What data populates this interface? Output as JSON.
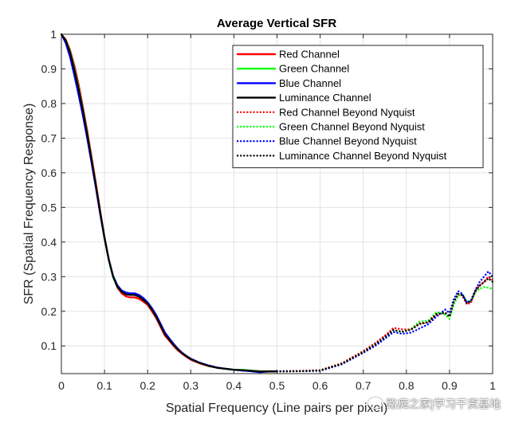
{
  "chart_data": {
    "type": "line",
    "title": "Average Vertical SFR",
    "xlabel": "Spatial Frequency (Line pairs per pixel)",
    "ylabel": "SFR (Spatial Frequency Response)",
    "xlim": [
      0,
      1
    ],
    "ylim": [
      0.02,
      1
    ],
    "xticks": [
      "0",
      "0.1",
      "0.2",
      "0.3",
      "0.4",
      "0.5",
      "0.6",
      "0.7",
      "0.8",
      "0.9",
      "1"
    ],
    "yticks": [
      "0.1",
      "0.2",
      "0.3",
      "0.4",
      "0.5",
      "0.6",
      "0.7",
      "0.8",
      "0.9",
      "1"
    ],
    "grid": true,
    "legend_position": "top-right",
    "series": [
      {
        "name": "Red Channel",
        "color": "#ff0000",
        "style": "solid",
        "x": [
          0,
          0.01,
          0.02,
          0.03,
          0.04,
          0.05,
          0.06,
          0.07,
          0.08,
          0.09,
          0.1,
          0.11,
          0.12,
          0.13,
          0.14,
          0.15,
          0.16,
          0.17,
          0.18,
          0.19,
          0.2,
          0.21,
          0.22,
          0.23,
          0.24,
          0.25,
          0.26,
          0.27,
          0.28,
          0.29,
          0.3,
          0.32,
          0.34,
          0.36,
          0.38,
          0.4,
          0.42,
          0.44,
          0.46,
          0.48,
          0.5
        ],
        "y": [
          1,
          0.985,
          0.955,
          0.91,
          0.855,
          0.79,
          0.72,
          0.645,
          0.57,
          0.49,
          0.415,
          0.35,
          0.3,
          0.268,
          0.252,
          0.243,
          0.24,
          0.24,
          0.236,
          0.228,
          0.218,
          0.2,
          0.18,
          0.155,
          0.13,
          0.115,
          0.1,
          0.087,
          0.077,
          0.068,
          0.06,
          0.05,
          0.042,
          0.037,
          0.034,
          0.031,
          0.029,
          0.028,
          0.027,
          0.027,
          0.027
        ]
      },
      {
        "name": "Green Channel",
        "color": "#00ff00",
        "style": "solid",
        "x": [
          0,
          0.01,
          0.02,
          0.03,
          0.04,
          0.05,
          0.06,
          0.07,
          0.08,
          0.09,
          0.1,
          0.11,
          0.12,
          0.13,
          0.14,
          0.15,
          0.16,
          0.17,
          0.18,
          0.19,
          0.2,
          0.21,
          0.22,
          0.23,
          0.24,
          0.25,
          0.26,
          0.27,
          0.28,
          0.29,
          0.3,
          0.32,
          0.34,
          0.36,
          0.38,
          0.4,
          0.42,
          0.44,
          0.46,
          0.48,
          0.5
        ],
        "y": [
          1,
          0.983,
          0.95,
          0.902,
          0.845,
          0.782,
          0.712,
          0.638,
          0.562,
          0.485,
          0.41,
          0.347,
          0.298,
          0.27,
          0.256,
          0.25,
          0.248,
          0.248,
          0.243,
          0.234,
          0.222,
          0.205,
          0.185,
          0.16,
          0.135,
          0.119,
          0.103,
          0.09,
          0.079,
          0.07,
          0.062,
          0.051,
          0.043,
          0.037,
          0.034,
          0.031,
          0.031,
          0.029,
          0.027,
          0.026,
          0.026
        ]
      },
      {
        "name": "Blue Channel",
        "color": "#0000ff",
        "style": "solid",
        "x": [
          0,
          0.01,
          0.02,
          0.03,
          0.04,
          0.05,
          0.06,
          0.07,
          0.08,
          0.09,
          0.1,
          0.11,
          0.12,
          0.13,
          0.14,
          0.15,
          0.16,
          0.17,
          0.18,
          0.19,
          0.2,
          0.21,
          0.22,
          0.23,
          0.24,
          0.25,
          0.26,
          0.27,
          0.28,
          0.29,
          0.3,
          0.32,
          0.34,
          0.36,
          0.38,
          0.4,
          0.42,
          0.44,
          0.46,
          0.48,
          0.5
        ],
        "y": [
          1,
          0.975,
          0.935,
          0.882,
          0.825,
          0.765,
          0.698,
          0.628,
          0.556,
          0.48,
          0.41,
          0.35,
          0.302,
          0.275,
          0.26,
          0.254,
          0.252,
          0.252,
          0.247,
          0.238,
          0.226,
          0.209,
          0.189,
          0.164,
          0.139,
          0.122,
          0.106,
          0.092,
          0.08,
          0.071,
          0.063,
          0.052,
          0.044,
          0.038,
          0.034,
          0.031,
          0.029,
          0.027,
          0.024,
          0.026,
          0.027
        ]
      },
      {
        "name": "Luminance Channel",
        "color": "#000000",
        "style": "solid",
        "x": [
          0,
          0.01,
          0.02,
          0.03,
          0.04,
          0.05,
          0.06,
          0.07,
          0.08,
          0.09,
          0.1,
          0.11,
          0.12,
          0.13,
          0.14,
          0.15,
          0.16,
          0.17,
          0.18,
          0.19,
          0.2,
          0.21,
          0.22,
          0.23,
          0.24,
          0.25,
          0.26,
          0.27,
          0.28,
          0.29,
          0.3,
          0.32,
          0.34,
          0.36,
          0.38,
          0.4,
          0.42,
          0.44,
          0.46,
          0.48,
          0.5
        ],
        "y": [
          1,
          0.982,
          0.948,
          0.898,
          0.842,
          0.779,
          0.71,
          0.637,
          0.562,
          0.486,
          0.412,
          0.348,
          0.3,
          0.271,
          0.256,
          0.249,
          0.247,
          0.247,
          0.242,
          0.233,
          0.222,
          0.205,
          0.184,
          0.159,
          0.134,
          0.118,
          0.103,
          0.09,
          0.079,
          0.07,
          0.062,
          0.051,
          0.043,
          0.037,
          0.034,
          0.031,
          0.03,
          0.028,
          0.026,
          0.026,
          0.026
        ]
      },
      {
        "name": "Red Channel Beyond Nyquist",
        "color": "#ff0000",
        "style": "dotted",
        "x": [
          0.5,
          0.55,
          0.6,
          0.65,
          0.7,
          0.73,
          0.76,
          0.77,
          0.79,
          0.81,
          0.83,
          0.85,
          0.87,
          0.89,
          0.9,
          0.91,
          0.92,
          0.93,
          0.94,
          0.95,
          0.96,
          0.97,
          0.98,
          0.99,
          1.0
        ],
        "y": [
          0.027,
          0.028,
          0.03,
          0.05,
          0.085,
          0.11,
          0.14,
          0.152,
          0.148,
          0.148,
          0.165,
          0.168,
          0.19,
          0.195,
          0.185,
          0.23,
          0.25,
          0.245,
          0.22,
          0.225,
          0.26,
          0.275,
          0.285,
          0.3,
          0.29
        ]
      },
      {
        "name": "Green Channel Beyond Nyquist",
        "color": "#00ff00",
        "style": "dotted",
        "x": [
          0.5,
          0.55,
          0.6,
          0.65,
          0.7,
          0.73,
          0.76,
          0.77,
          0.79,
          0.81,
          0.83,
          0.85,
          0.87,
          0.89,
          0.9,
          0.91,
          0.92,
          0.93,
          0.94,
          0.95,
          0.96,
          0.97,
          0.98,
          0.99,
          1.0
        ],
        "y": [
          0.026,
          0.027,
          0.029,
          0.048,
          0.082,
          0.105,
          0.135,
          0.145,
          0.14,
          0.148,
          0.17,
          0.172,
          0.198,
          0.19,
          0.178,
          0.22,
          0.245,
          0.248,
          0.228,
          0.23,
          0.255,
          0.265,
          0.27,
          0.268,
          0.265
        ]
      },
      {
        "name": "Blue Channel Beyond Nyquist",
        "color": "#0000ff",
        "style": "dotted",
        "x": [
          0.5,
          0.55,
          0.6,
          0.65,
          0.7,
          0.73,
          0.76,
          0.77,
          0.79,
          0.81,
          0.83,
          0.85,
          0.87,
          0.89,
          0.9,
          0.91,
          0.92,
          0.93,
          0.94,
          0.95,
          0.96,
          0.97,
          0.98,
          0.99,
          1.0
        ],
        "y": [
          0.027,
          0.027,
          0.028,
          0.047,
          0.08,
          0.102,
          0.13,
          0.14,
          0.135,
          0.138,
          0.15,
          0.162,
          0.185,
          0.205,
          0.195,
          0.235,
          0.258,
          0.25,
          0.225,
          0.232,
          0.262,
          0.285,
          0.3,
          0.315,
          0.3
        ]
      },
      {
        "name": "Luminance Channel Beyond Nyquist",
        "color": "#000000",
        "style": "dotted",
        "x": [
          0.5,
          0.55,
          0.6,
          0.65,
          0.7,
          0.73,
          0.76,
          0.77,
          0.79,
          0.81,
          0.83,
          0.85,
          0.87,
          0.89,
          0.9,
          0.91,
          0.92,
          0.93,
          0.94,
          0.95,
          0.96,
          0.97,
          0.98,
          0.99,
          1.0
        ],
        "y": [
          0.026,
          0.027,
          0.029,
          0.048,
          0.082,
          0.106,
          0.136,
          0.146,
          0.141,
          0.146,
          0.163,
          0.168,
          0.192,
          0.196,
          0.185,
          0.228,
          0.25,
          0.247,
          0.224,
          0.229,
          0.259,
          0.274,
          0.284,
          0.295,
          0.285
        ]
      }
    ]
  },
  "watermark": "路痴之家|学习干货基地"
}
